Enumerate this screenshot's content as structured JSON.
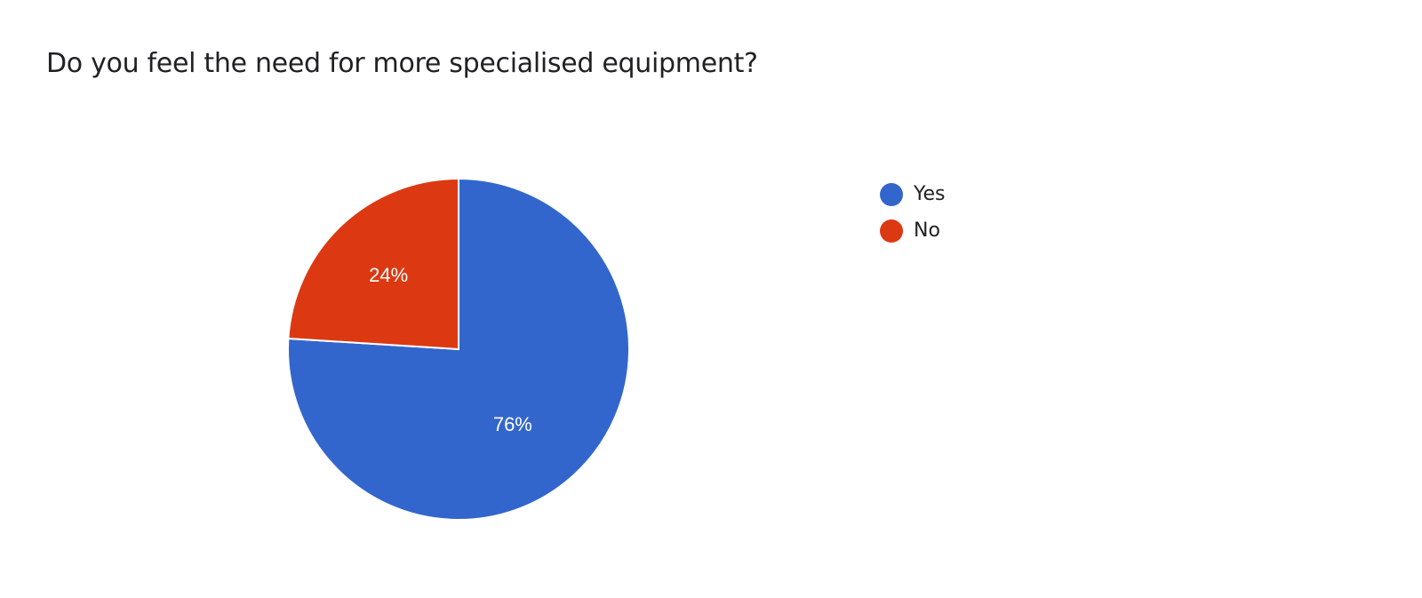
{
  "chart_data": {
    "type": "pie",
    "title": "Do you feel the need for more specialised equipment?",
    "legend_position": "right",
    "slices": [
      {
        "label": "Yes",
        "value": 76,
        "data_label": "76%",
        "color": "#3366cc"
      },
      {
        "label": "No",
        "value": 24,
        "data_label": "24%",
        "color": "#dc3912"
      }
    ]
  }
}
